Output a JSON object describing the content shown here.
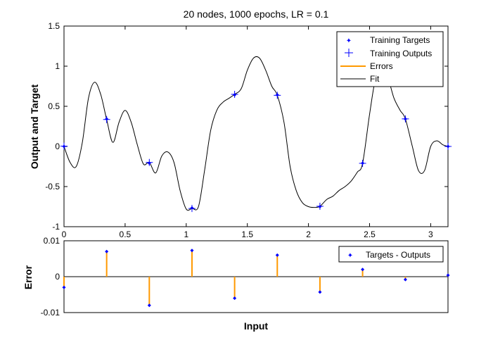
{
  "figure": {
    "background": "#ffffff"
  },
  "chart_data": [
    {
      "type": "line",
      "title": "20 nodes, 1000 epochs, LR = 0.1",
      "xlabel": "",
      "ylabel": "Output and Target",
      "xlim": [
        0,
        3.1416
      ],
      "ylim": [
        -1,
        1.5
      ],
      "xticks": [
        0,
        0.5,
        1,
        1.5,
        2,
        2.5,
        3
      ],
      "xtick_labels": [
        "0",
        "0.5",
        "1",
        "1.5",
        "2",
        "2.5",
        "3"
      ],
      "yticks": [
        -1,
        -0.5,
        0,
        0.5,
        1,
        1.5
      ],
      "ytick_labels": [
        "-1",
        "-0.5",
        "0",
        "0.5",
        "1",
        "1.5"
      ],
      "grid": false,
      "legend_position": "top-right",
      "legend": [
        "Training Targets",
        "Training Outputs",
        "Errors",
        "Fit"
      ],
      "colors": {
        "targets": "#0000ff",
        "outputs": "#0000ff",
        "errors": "#ff9900",
        "fit": "#000000"
      },
      "training_x": [
        0,
        0.349,
        0.698,
        1.047,
        1.396,
        1.745,
        2.094,
        2.443,
        2.793,
        3.142
      ],
      "training_targets": [
        0,
        0.342,
        -0.208,
        -0.766,
        0.643,
        0.643,
        -0.75,
        -0.208,
        0.342,
        0
      ],
      "training_outputs": [
        0.003,
        0.335,
        -0.2,
        -0.773,
        0.649,
        0.637,
        -0.746,
        -0.21,
        0.343,
        0
      ],
      "fit": {
        "x": [
          0,
          0.05,
          0.1,
          0.15,
          0.2,
          0.25,
          0.3,
          0.349,
          0.4,
          0.45,
          0.5,
          0.55,
          0.6,
          0.65,
          0.698,
          0.75,
          0.8,
          0.85,
          0.9,
          0.95,
          1.0,
          1.047,
          1.1,
          1.15,
          1.2,
          1.25,
          1.3,
          1.35,
          1.396,
          1.45,
          1.5,
          1.55,
          1.6,
          1.65,
          1.7,
          1.745,
          1.8,
          1.85,
          1.9,
          1.95,
          2.0,
          2.05,
          2.094,
          2.15,
          2.2,
          2.25,
          2.3,
          2.35,
          2.4,
          2.443,
          2.5,
          2.55,
          2.6,
          2.65,
          2.7,
          2.75,
          2.793,
          2.85,
          2.9,
          2.95,
          3.0,
          3.05,
          3.1,
          3.142
        ],
        "y": [
          0,
          -0.2,
          -0.25,
          0.05,
          0.6,
          0.8,
          0.65,
          0.335,
          0.05,
          0.3,
          0.45,
          0.3,
          0.02,
          -0.22,
          -0.2,
          -0.33,
          -0.12,
          -0.07,
          -0.2,
          -0.55,
          -0.78,
          -0.773,
          -0.75,
          -0.3,
          0.2,
          0.45,
          0.55,
          0.6,
          0.649,
          0.72,
          0.95,
          1.1,
          1.1,
          0.95,
          0.75,
          0.637,
          0.3,
          -0.25,
          -0.55,
          -0.7,
          -0.75,
          -0.76,
          -0.746,
          -0.66,
          -0.62,
          -0.55,
          -0.5,
          -0.43,
          -0.32,
          -0.21,
          0.4,
          0.85,
          0.92,
          0.85,
          0.6,
          0.45,
          0.343,
          0.0,
          -0.3,
          -0.3,
          0.0,
          0.07,
          0.02,
          0
        ]
      }
    },
    {
      "type": "scatter",
      "title": "",
      "xlabel": "Input",
      "ylabel": "Error",
      "xlim": [
        0,
        3.1416
      ],
      "ylim": [
        -0.01,
        0.01
      ],
      "yticks": [
        -0.01,
        0,
        0.01
      ],
      "ytick_labels": [
        "-0.01",
        "0",
        "0.01"
      ],
      "grid": false,
      "legend_position": "top-right",
      "legend": [
        "Targets - Outputs"
      ],
      "colors": {
        "points": "#0000ff",
        "stems": "#ff9900",
        "zero_line": "#000000"
      },
      "x": [
        0,
        0.349,
        0.698,
        1.047,
        1.396,
        1.745,
        2.094,
        2.443,
        2.793,
        3.142
      ],
      "values": [
        -0.003,
        0.007,
        -0.008,
        0.0073,
        -0.006,
        0.006,
        -0.0043,
        0.002,
        -0.0008,
        0.0004
      ]
    }
  ]
}
